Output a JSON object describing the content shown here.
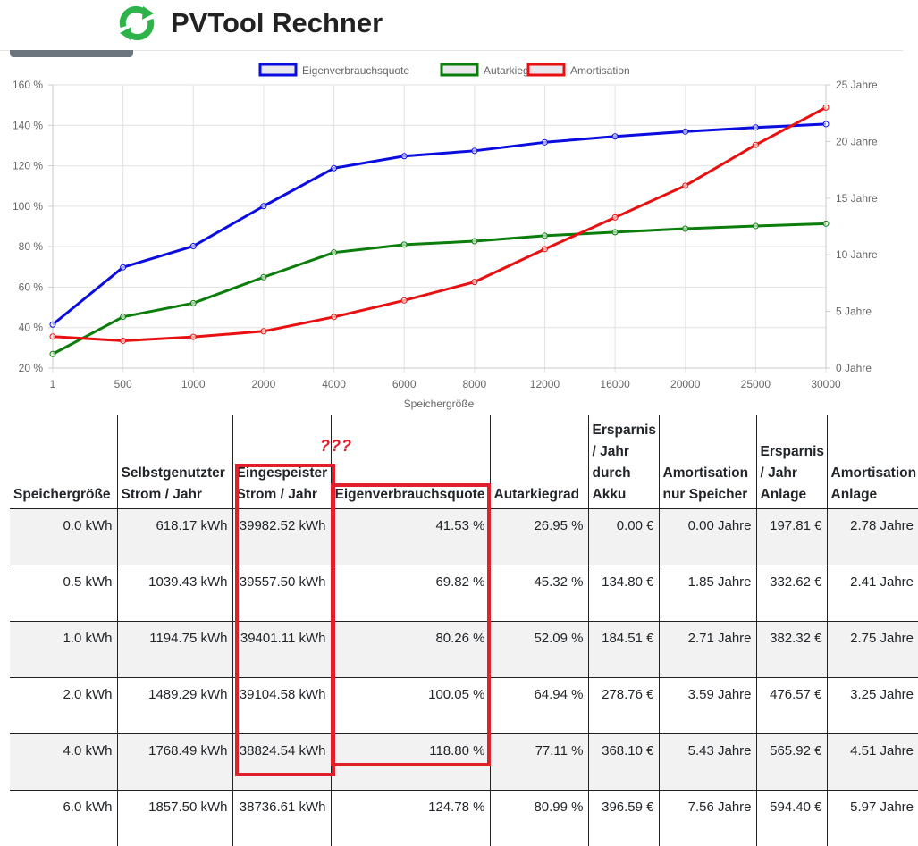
{
  "app": {
    "title": "PVTool Rechner",
    "logo_icon": "recycle-arrows-icon"
  },
  "colors": {
    "blue": "#0a0ce0",
    "green": "#0a7d0a",
    "red": "#e81010",
    "highlight": "#e0202b"
  },
  "annotation": {
    "text": "???"
  },
  "chart_data": {
    "type": "line",
    "categories": [
      "1",
      "500",
      "1000",
      "2000",
      "4000",
      "6000",
      "8000",
      "12000",
      "16000",
      "20000",
      "25000",
      "30000"
    ],
    "xlabel": "Speichergröße",
    "legend_position": "top-center",
    "grid": true,
    "y_left": {
      "ylim": [
        20,
        160
      ],
      "ticks": [
        "20 %",
        "40 %",
        "60 %",
        "80 %",
        "100 %",
        "120 %",
        "140 %",
        "160 %"
      ]
    },
    "y_right": {
      "ylim": [
        0,
        25
      ],
      "ticks": [
        "0 Jahre",
        "5 Jahre",
        "10 Jahre",
        "15 Jahre",
        "20 Jahre",
        "25 Jahre"
      ]
    },
    "series": [
      {
        "name": "Eigenverbrauchsquote",
        "color": "#0a0ce0",
        "axis": "left",
        "values": [
          41.53,
          69.82,
          80.26,
          100.05,
          118.8,
          124.78,
          127.4,
          131.6,
          134.5,
          136.9,
          138.9,
          140.6
        ]
      },
      {
        "name": "Autarkiegrad",
        "color": "#0a7d0a",
        "axis": "left",
        "values": [
          26.95,
          45.32,
          52.09,
          64.94,
          77.11,
          80.99,
          82.7,
          85.4,
          87.2,
          88.9,
          90.2,
          91.4
        ]
      },
      {
        "name": "Amortisation",
        "color": "#e81010",
        "axis": "right",
        "values": [
          2.78,
          2.41,
          2.75,
          3.25,
          4.51,
          5.97,
          7.6,
          10.5,
          13.3,
          16.1,
          19.7,
          23.0
        ]
      }
    ]
  },
  "table": {
    "headers": [
      "Speichergröße",
      "Selbstgenutzter Strom / Jahr",
      "Eingespeister Strom / Jahr",
      "Eigenverbrauchsquote",
      "Autarkiegrad",
      "Ersparnis / Jahr durch Akku",
      "Amortisation nur Speicher",
      "Ersparnis / Jahr Anlage",
      "Amortisation Anlage"
    ],
    "rows": [
      [
        "0.0 kWh",
        "618.17 kWh",
        "39982.52 kWh",
        "41.53 %",
        "26.95 %",
        "0.00 €",
        "0.00 Jahre",
        "197.81 €",
        "2.78 Jahre"
      ],
      [
        "0.5 kWh",
        "1039.43 kWh",
        "39557.50 kWh",
        "69.82 %",
        "45.32 %",
        "134.80 €",
        "1.85 Jahre",
        "332.62 €",
        "2.41 Jahre"
      ],
      [
        "1.0 kWh",
        "1194.75 kWh",
        "39401.11 kWh",
        "80.26 %",
        "52.09 %",
        "184.51 €",
        "2.71 Jahre",
        "382.32 €",
        "2.75 Jahre"
      ],
      [
        "2.0 kWh",
        "1489.29 kWh",
        "39104.58 kWh",
        "100.05 %",
        "64.94 %",
        "278.76 €",
        "3.59 Jahre",
        "476.57 €",
        "3.25 Jahre"
      ],
      [
        "4.0 kWh",
        "1768.49 kWh",
        "38824.54 kWh",
        "118.80 %",
        "77.11 %",
        "368.10 €",
        "5.43 Jahre",
        "565.92 €",
        "4.51 Jahre"
      ],
      [
        "6.0 kWh",
        "1857.50 kWh",
        "38736.61 kWh",
        "124.78 %",
        "80.99 %",
        "396.59 €",
        "7.56 Jahre",
        "594.40 €",
        "5.97 Jahre"
      ]
    ]
  }
}
